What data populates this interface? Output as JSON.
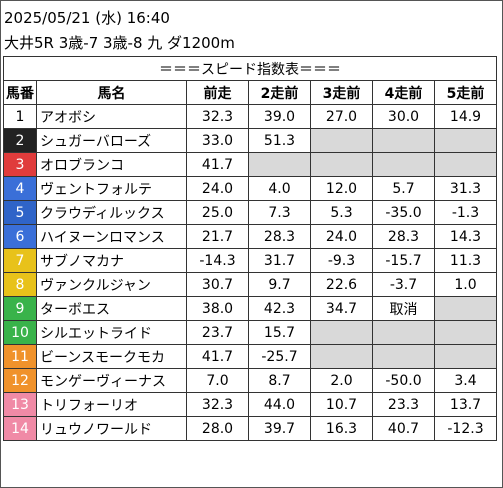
{
  "header": {
    "datetime": "2025/05/21 (水) 16:40",
    "race": "大井5R 3歳-7 3歳-8 九 ダ1200m"
  },
  "table": {
    "title": "＝＝＝スピード指数表＝＝＝",
    "columns": [
      "馬番",
      "馬名",
      "前走",
      "2走前",
      "3走前",
      "4走前",
      "5走前"
    ],
    "rows": [
      {
        "no": "1",
        "name": "アオボシ",
        "vals": [
          "32.3",
          "39.0",
          "27.0",
          "30.0",
          "14.9"
        ],
        "bg": "#ffffff",
        "fg": "#000000"
      },
      {
        "no": "2",
        "name": "シュガーバローズ",
        "vals": [
          "33.0",
          "51.3",
          "",
          "",
          ""
        ],
        "bg": "#222222",
        "fg": "#ffffff"
      },
      {
        "no": "3",
        "name": "オロブランコ",
        "vals": [
          "41.7",
          "",
          "",
          "",
          ""
        ],
        "bg": "#e03c3c",
        "fg": "#ffffff"
      },
      {
        "no": "4",
        "name": "ヴェントフォルテ",
        "vals": [
          "24.0",
          "4.0",
          "12.0",
          "5.7",
          "31.3"
        ],
        "bg": "#3a6fd8",
        "fg": "#ffffff"
      },
      {
        "no": "5",
        "name": "クラウディルックス",
        "vals": [
          "25.0",
          "7.3",
          "5.3",
          "-35.0",
          "-1.3"
        ],
        "bg": "#2f64c8",
        "fg": "#ffffff"
      },
      {
        "no": "6",
        "name": "ハイヌーンロマンス",
        "vals": [
          "21.7",
          "28.3",
          "24.0",
          "28.3",
          "14.3"
        ],
        "bg": "#3a6fd8",
        "fg": "#ffffff"
      },
      {
        "no": "7",
        "name": "サブノマカナ",
        "vals": [
          "-14.3",
          "31.7",
          "-9.3",
          "-15.7",
          "11.3"
        ],
        "bg": "#e8c21a",
        "fg": "#ffffff"
      },
      {
        "no": "8",
        "name": "ヴァンクルジャン",
        "vals": [
          "30.7",
          "9.7",
          "22.6",
          "-3.7",
          "1.0"
        ],
        "bg": "#e8c21a",
        "fg": "#ffffff"
      },
      {
        "no": "9",
        "name": "ターボエス",
        "vals": [
          "38.0",
          "42.3",
          "34.7",
          "取消",
          ""
        ],
        "bg": "#39b34a",
        "fg": "#ffffff"
      },
      {
        "no": "10",
        "name": "シルエットライド",
        "vals": [
          "23.7",
          "15.7",
          "",
          "",
          ""
        ],
        "bg": "#39b34a",
        "fg": "#ffffff"
      },
      {
        "no": "11",
        "name": "ビーンスモークモカ",
        "vals": [
          "41.7",
          "-25.7",
          "",
          "",
          ""
        ],
        "bg": "#f0922b",
        "fg": "#ffffff"
      },
      {
        "no": "12",
        "name": "モンゲーヴィーナス",
        "vals": [
          "7.0",
          "8.7",
          "2.0",
          "-50.0",
          "3.4"
        ],
        "bg": "#f0922b",
        "fg": "#ffffff"
      },
      {
        "no": "13",
        "name": "トリフォーリオ",
        "vals": [
          "32.3",
          "44.0",
          "10.7",
          "23.3",
          "13.7"
        ],
        "bg": "#f08aa6",
        "fg": "#ffffff"
      },
      {
        "no": "14",
        "name": "リュウノワールド",
        "vals": [
          "28.0",
          "39.7",
          "16.3",
          "40.7",
          "-12.3"
        ],
        "bg": "#f08aa6",
        "fg": "#ffffff"
      }
    ]
  }
}
